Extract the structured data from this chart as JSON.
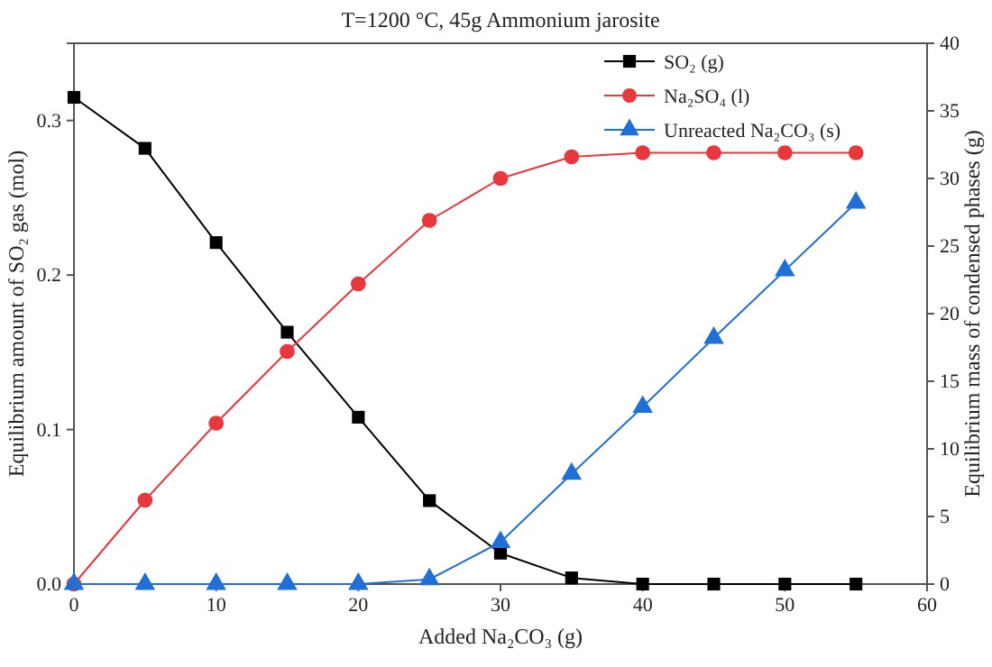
{
  "chart_data": {
    "type": "line",
    "title": "T=1200 °C, 45g Ammonium jarosite",
    "xlabel": "Added Na₂CO₃ (g)",
    "ylabel": "Equilibrium amount of SO₂ gas (mol)",
    "y2label": "Equilibrium mass of condensed phases (g)",
    "x": [
      0,
      5,
      10,
      15,
      20,
      25,
      30,
      35,
      40,
      45,
      50,
      55
    ],
    "series": [
      {
        "name": "SO₂ (g)",
        "color": "#000000",
        "marker": "square",
        "values": [
          0.315,
          0.282,
          0.221,
          0.163,
          0.108,
          0.054,
          0.02,
          0.004,
          0,
          0,
          0,
          0
        ]
      },
      {
        "name": "Na₂SO₄ (l)",
        "color": "#e8383d",
        "marker": "circle",
        "axis": "y2",
        "values": [
          0,
          6.2,
          11.9,
          17.2,
          22.2,
          26.9,
          30.0,
          31.6,
          31.9,
          31.9,
          31.9,
          31.9
        ]
      },
      {
        "name": "Unreacted Na₂CO₃ (s)",
        "color": "#1f6fd6",
        "marker": "triangle",
        "axis": "y2",
        "values": [
          0,
          0,
          0,
          0,
          0,
          0.35,
          3.1,
          8.15,
          13.1,
          18.2,
          23.2,
          28.2
        ]
      }
    ],
    "xlim": [
      0,
      60
    ],
    "xticks": [
      0,
      10,
      20,
      30,
      40,
      50,
      60
    ],
    "ylim": [
      0,
      0.35
    ],
    "yticks": [
      {
        "value": 0,
        "label": "0.0"
      },
      0.1,
      0.2,
      0.3
    ],
    "y2lim": [
      0,
      40
    ],
    "y2ticks": [
      0,
      5,
      10,
      15,
      20,
      25,
      30,
      35,
      40
    ],
    "legend": "top right",
    "grid": false
  }
}
